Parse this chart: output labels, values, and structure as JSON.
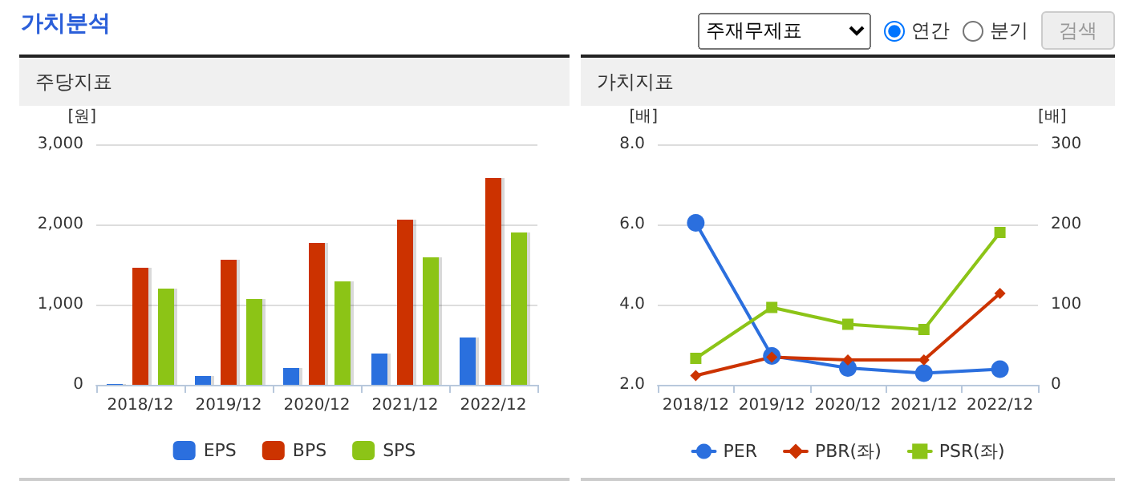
{
  "chart_data": [
    {
      "type": "bar",
      "title": "주당지표",
      "annotations": [
        "가치분석"
      ],
      "ylabel": "[원]",
      "categories": [
        "2018/12",
        "2019/12",
        "2020/12",
        "2021/12",
        "2022/12"
      ],
      "series": [
        {
          "name": "EPS",
          "color": "#2b6fde",
          "values": [
            10,
            110,
            210,
            390,
            590
          ]
        },
        {
          "name": "BPS",
          "color": "#cc3300",
          "values": [
            1460,
            1560,
            1770,
            2060,
            2580
          ]
        },
        {
          "name": "SPS",
          "color": "#8cc417",
          "values": [
            1200,
            1070,
            1290,
            1590,
            1900
          ]
        }
      ],
      "ylim": [
        0,
        3000
      ],
      "yticks": [
        0,
        {
          "value": 1000,
          "label": "1,000"
        },
        {
          "value": 2000,
          "label": "2,000"
        },
        {
          "value": 3000,
          "label": "3,000"
        }
      ],
      "grid": "y",
      "legend": "bottom"
    },
    {
      "type": "line",
      "title": "가치지표",
      "annotations": [
        "주재무제표",
        "연간",
        "분기",
        "검색"
      ],
      "ylabel": "[배]",
      "y2label": "[배]",
      "categories": [
        "2018/12",
        "2019/12",
        "2020/12",
        "2021/12",
        "2022/12"
      ],
      "series": [
        {
          "name": "PER",
          "color": "#2b6fde",
          "marker": "circle",
          "values": [
            6.04,
            2.72,
            2.42,
            2.29,
            2.39
          ]
        },
        {
          "name": "PBR(좌)",
          "color": "#cc3300",
          "marker": "diamond",
          "values": [
            2.23,
            2.69,
            2.62,
            2.62,
            4.28
          ]
        },
        {
          "name": "PSR(좌)",
          "color": "#8cc417",
          "marker": "square",
          "values": [
            2.66,
            3.93,
            3.51,
            3.38,
            5.8
          ]
        }
      ],
      "ylim": [
        2,
        8
      ],
      "yticks": [
        {
          "value": 2,
          "label": "2.0"
        },
        {
          "value": 4,
          "label": "4.0"
        },
        {
          "value": 6,
          "label": "6.0"
        },
        {
          "value": 8,
          "label": "8.0"
        }
      ],
      "y2lim": [
        0,
        300
      ],
      "y2ticks": [
        0,
        100,
        200,
        300
      ],
      "grid": "y",
      "legend": "bottom",
      "line_style": "solid"
    }
  ]
}
